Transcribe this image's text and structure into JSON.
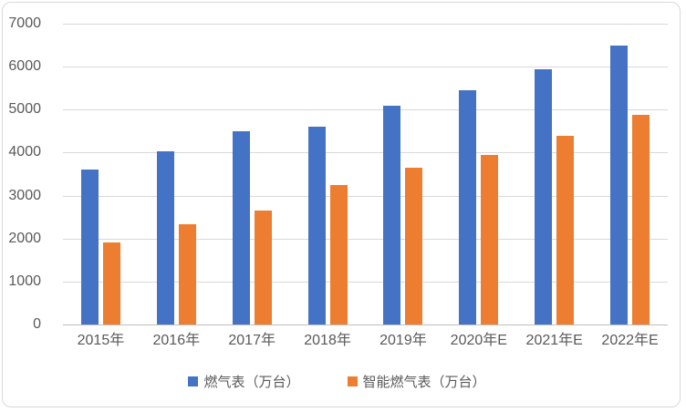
{
  "chart_data": {
    "type": "bar",
    "title": "",
    "categories": [
      "2015年",
      "2016年",
      "2017年",
      "2018年",
      "2019年",
      "2020年E",
      "2021年E",
      "2022年E"
    ],
    "series": [
      {
        "name": "燃气表（万台）",
        "color": "#4472C4",
        "values": [
          3600,
          4040,
          4500,
          4600,
          5100,
          5450,
          5950,
          6500
        ]
      },
      {
        "name": "智能燃气表（万台）",
        "color": "#ED7D31",
        "values": [
          1910,
          2330,
          2650,
          3250,
          3650,
          3950,
          4400,
          4890
        ]
      }
    ],
    "ylim": [
      0,
      7000
    ],
    "yticks": [
      0,
      1000,
      2000,
      3000,
      4000,
      5000,
      6000,
      7000
    ],
    "grid": true,
    "legend_position": "bottom"
  },
  "colors": {
    "background": "#FFFFFF",
    "frame_border": "#D9D9D9",
    "gridline": "#D9D9D9",
    "axis_line": "#BFBFBF",
    "axis_text": "#595959",
    "series_blue": "#4472C4",
    "series_orange": "#ED7D31"
  }
}
